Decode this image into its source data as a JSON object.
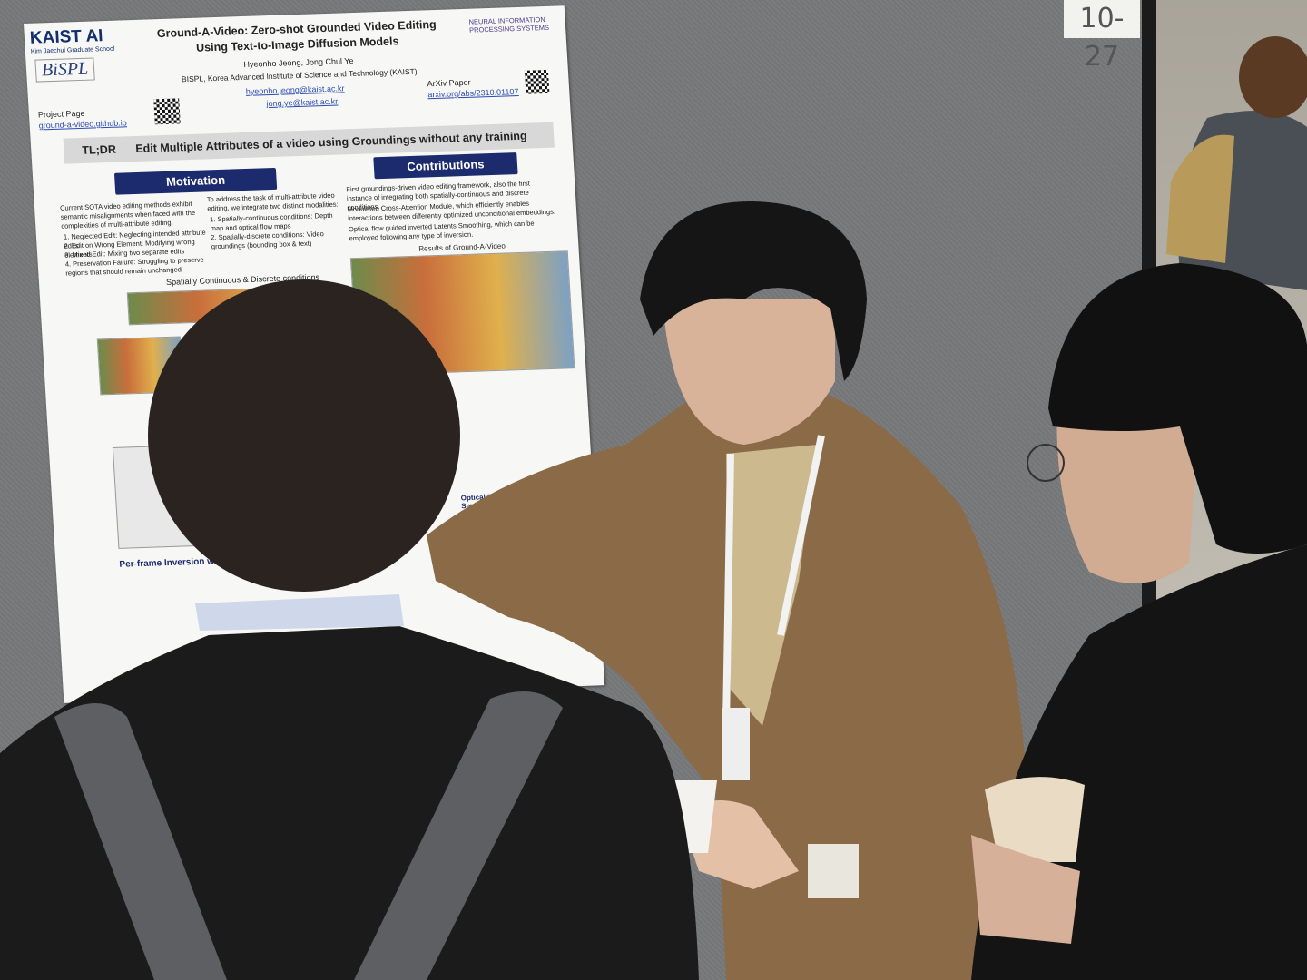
{
  "board_number": "10-27",
  "poster": {
    "logos": {
      "kaist": "KAIST AI",
      "kaist_sub": "Kim Jaechul Graduate School",
      "lab": "BiSPL",
      "neurips": "NEURAL INFORMATION PROCESSING SYSTEMS"
    },
    "title": "Ground-A-Video: Zero-shot Grounded Video Editing Using Text-to-Image Diffusion Models",
    "authors": "Hyeonho Jeong,  Jong Chul Ye",
    "affiliation": "BISPL, Korea Advanced Institute of Science and Technology (KAIST)",
    "emails": [
      "hyeonho.jeong@kaist.ac.kr",
      "jong.ye@kaist.ac.kr"
    ],
    "project_label": "Project Page",
    "project_url": "ground-a-video.github.io",
    "arxiv_label": "ArXiv Paper",
    "arxiv_url": "arxiv.org/abs/2310.01107",
    "tldr_label": "TL;DR",
    "tldr": "Edit Multiple Attributes of a video using Groundings without any training",
    "sections": [
      "Motivation",
      "Contributions"
    ],
    "motivation": [
      "Current SOTA video editing methods exhibit semantic misalignments when faced with the complexities of multi-attribute editing.",
      "1. Neglected Edit: Neglecting intended attribute edits",
      "2. Edit on Wrong Element: Modifying wrong elements",
      "3. Mixed Edit: Mixing two separate edits",
      "4. Preservation Failure: Struggling to preserve regions that should remain unchanged"
    ],
    "approach": [
      "To address the task of multi-attribute video editing, we integrate two distinct modalities:",
      "1. Spatially-continuous conditions: Depth map and optical flow maps",
      "2. Spatially-discrete conditions: Video groundings (bounding box & text)"
    ],
    "contributions": [
      "First groundings-driven video editing framework, also the first instance of integrating both spatially-continuous and discrete conditions.",
      "Modulated Cross-Attention Module, which efficiently enables interactions between differently optimized unconditional embeddings.",
      "Optical flow guided inverted Latents Smoothing, which can be employed following any type of inversion."
    ],
    "captions": [
      "Spatially Continuous & Discrete conditions",
      "Results of Ground-A-Video",
      "Per-frame Inversion with Mod",
      "Optical Flow Guided Inverted Latents Smoothing"
    ]
  }
}
